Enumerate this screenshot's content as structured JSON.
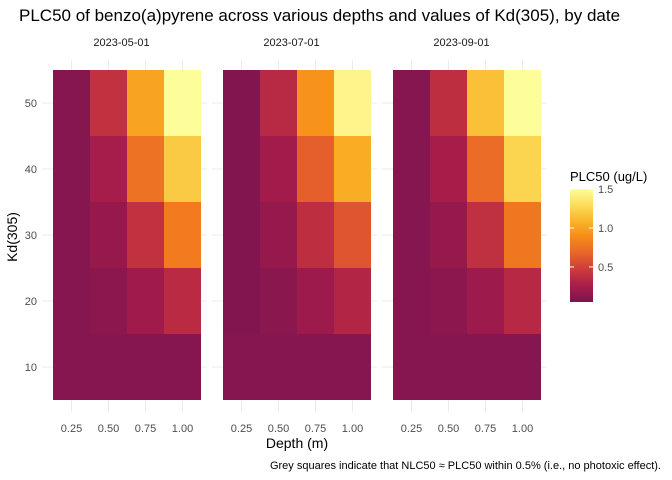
{
  "chart_data": {
    "type": "heatmap",
    "title": "PLC50 of benzo(a)pyrene across various depths and values of Kd(305), by date",
    "xlabel": "Depth (m)",
    "ylabel": "Kd(305)",
    "caption": "Grey squares indicate that NLC50 ≈ PLC50 within 0.5% (i.e., no photoxic effect).",
    "x": [
      0.25,
      0.5,
      0.75,
      1.0
    ],
    "x_tick_labels": [
      "0.25",
      "0.50",
      "0.75",
      "1.00"
    ],
    "y": [
      10,
      20,
      30,
      40,
      50
    ],
    "y_tick_labels": [
      "10",
      "20",
      "30",
      "40",
      "50"
    ],
    "ylim": [
      5,
      55
    ],
    "legend": {
      "title": "PLC50 (ug/L)",
      "position": "right",
      "range": [
        0.05,
        1.5
      ],
      "ticks": [
        0.5,
        1.0,
        1.5
      ],
      "tick_labels": [
        "0.5",
        "1.0",
        "1.5"
      ]
    },
    "colorscale": [
      "#7b1450",
      "#a81c4a",
      "#cc3b3b",
      "#e8632a",
      "#f68a17",
      "#f9b428",
      "#fcdc5a",
      "#fdfd9a"
    ],
    "grid": true,
    "facets": [
      {
        "date": "2023-05-01",
        "values": [
          [
            0.1,
            0.1,
            0.1,
            0.1
          ],
          [
            0.1,
            0.13,
            0.22,
            0.36
          ],
          [
            0.1,
            0.18,
            0.4,
            0.8
          ],
          [
            0.1,
            0.25,
            0.75,
            1.2
          ],
          [
            0.1,
            0.4,
            1.0,
            1.5
          ]
        ]
      },
      {
        "date": "2023-07-01",
        "values": [
          [
            0.1,
            0.1,
            0.1,
            0.1
          ],
          [
            0.08,
            0.12,
            0.2,
            0.32
          ],
          [
            0.08,
            0.17,
            0.38,
            0.6
          ],
          [
            0.08,
            0.23,
            0.65,
            1.05
          ],
          [
            0.08,
            0.35,
            0.92,
            1.45
          ]
        ]
      },
      {
        "date": "2023-09-01",
        "values": [
          [
            0.1,
            0.1,
            0.1,
            0.1
          ],
          [
            0.1,
            0.13,
            0.2,
            0.34
          ],
          [
            0.1,
            0.18,
            0.39,
            0.78
          ],
          [
            0.1,
            0.26,
            0.72,
            1.25
          ],
          [
            0.1,
            0.38,
            1.15,
            1.5
          ]
        ]
      }
    ]
  }
}
